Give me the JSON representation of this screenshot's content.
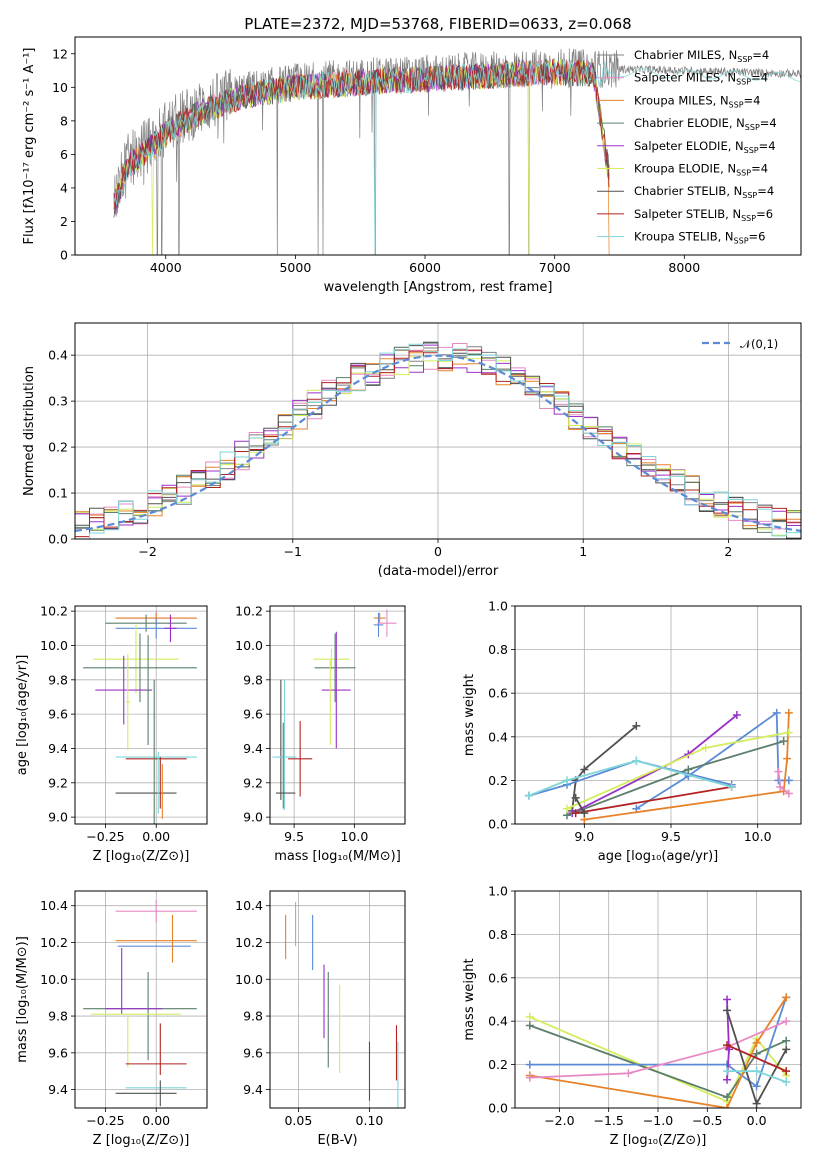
{
  "colors": [
    "#808080",
    "#e78ac3",
    "#e6822a",
    "#5b7f6b",
    "#9b30c9",
    "#d4ed5c",
    "#505050",
    "#b22222",
    "#7fd6d9"
  ],
  "chart_data": [
    {
      "id": "spectrum",
      "type": "line",
      "title": "PLATE=2372, MJD=53768, FIBERID=0633, z=0.068",
      "xlabel": "wavelength [Angstrom, rest frame]",
      "ylabel": "Flux [fλ10⁻¹⁷ erg cm⁻² s⁻¹ A⁻¹]",
      "xlim": [
        3300,
        8900
      ],
      "ylim": [
        0,
        13
      ],
      "xticks": [
        4000,
        5000,
        6000,
        7000,
        8000
      ],
      "yticks": [
        0,
        2,
        4,
        6,
        8,
        10,
        12
      ],
      "grid": false,
      "legend_position": "right",
      "data_range_x": [
        3600,
        8900
      ],
      "model_cutoff_x": [
        7420
      ],
      "continuum": [
        [
          3600,
          3.2
        ],
        [
          3700,
          5.5
        ],
        [
          3900,
          6.8
        ],
        [
          4000,
          7.6
        ],
        [
          4300,
          8.9
        ],
        [
          4600,
          9.8
        ],
        [
          5000,
          10.3
        ],
        [
          5500,
          10.6
        ],
        [
          6000,
          10.8
        ],
        [
          6500,
          11.0
        ],
        [
          7000,
          11.2
        ],
        [
          7400,
          11.1
        ],
        [
          8000,
          11.0
        ],
        [
          8900,
          10.8
        ]
      ],
      "absorption_lines_x": [
        3934,
        3969,
        4102,
        4861,
        5175,
        5212,
        5616,
        6650,
        6800
      ],
      "series": [
        {
          "name": "Chabrier MILES, N_SSP=4"
        },
        {
          "name": "Salpeter MILES, N_SSP=4"
        },
        {
          "name": "Kroupa MILES, N_SSP=4"
        },
        {
          "name": "Chabrier ELODIE, N_SSP=4"
        },
        {
          "name": "Salpeter ELODIE, N_SSP=4"
        },
        {
          "name": "Kroupa ELODIE, N_SSP=4"
        },
        {
          "name": "Chabrier STELIB, N_SSP=4"
        },
        {
          "name": "Salpeter STELIB, N_SSP=6"
        },
        {
          "name": "Kroupa STELIB, N_SSP=6"
        }
      ]
    },
    {
      "id": "residuals",
      "type": "line",
      "xlabel": "(data-model)/error",
      "ylabel": "Normed distribution",
      "xlim": [
        -2.5,
        2.5
      ],
      "ylim": [
        0,
        0.47
      ],
      "xticks": [
        -2,
        -1,
        0,
        1,
        2
      ],
      "yticks": [
        0.0,
        0.1,
        0.2,
        0.3,
        0.4
      ],
      "grid": true,
      "legend": [
        "𝒩(0,1)"
      ],
      "legend_position": "top-right",
      "reference_curve": {
        "mean": 0,
        "sigma": 1,
        "color": "#5b8bd6"
      },
      "bins": {
        "start": -2.5,
        "width": 0.1,
        "count": 50
      }
    },
    {
      "id": "age-vs-Z",
      "type": "scatter",
      "xlabel": "Z [log₁₀(Z/Z⊙)]",
      "ylabel": "age  [log₁₀(age/yr)]",
      "xlim": [
        -0.4,
        0.25
      ],
      "ylim": [
        8.96,
        10.23
      ],
      "xticks": [
        -0.25,
        0.0
      ],
      "yticks": [
        9.0,
        9.2,
        9.4,
        9.6,
        9.8,
        10.0,
        10.2
      ],
      "grid": true,
      "points": [
        {
          "c": "#e78ac3",
          "x": 0.0,
          "y": 10.16,
          "dx": 0.2,
          "dy": 0.04
        },
        {
          "c": "#e6822a",
          "x": 0.0,
          "y": 10.16,
          "dx": 0.2,
          "dy": 0.03
        },
        {
          "c": "#5b7f6b",
          "x": -0.05,
          "y": 10.13,
          "dx": 0.2,
          "dy": 0.05
        },
        {
          "c": "#5b8bd6",
          "x": 0.0,
          "y": 10.1,
          "dx": 0.2,
          "dy": 0.06
        },
        {
          "c": "#9b30c9",
          "x": 0.07,
          "y": 10.1,
          "dx": 0.03,
          "dy": 0.08
        },
        {
          "c": "#d4ed5c",
          "x": -0.1,
          "y": 9.92,
          "dx": 0.21,
          "dy": 0.2
        },
        {
          "c": "#5b7f6b",
          "x": -0.08,
          "y": 9.87,
          "dx": 0.28,
          "dy": 0.2
        },
        {
          "c": "#9b30c9",
          "x": -0.16,
          "y": 9.74,
          "dx": 0.14,
          "dy": 0.2
        },
        {
          "c": "#d4ed5c",
          "x": -0.14,
          "y": 9.67,
          "dx": 0.01,
          "dy": 0.28
        },
        {
          "c": "#5b7f6b",
          "x": -0.04,
          "y": 9.74,
          "dx": 0.01,
          "dy": 0.32
        },
        {
          "c": "#7fd6d9",
          "x": 0.0,
          "y": 9.35,
          "dx": 0.2,
          "dy": 0.01
        },
        {
          "c": "#b22222",
          "x": 0.0,
          "y": 9.34,
          "dx": 0.15,
          "dy": 0.0
        },
        {
          "c": "#505050",
          "x": -0.05,
          "y": 9.14,
          "dx": 0.15,
          "dy": 0.0
        },
        {
          "c": "#e6822a",
          "x": 0.03,
          "y": 9.15,
          "dx": 0.0,
          "dy": 0.16
        },
        {
          "c": "#b22222",
          "x": 0.02,
          "y": 9.2,
          "dx": 0.0,
          "dy": 0.15
        },
        {
          "c": "#5b7f6b",
          "x": -0.01,
          "y": 9.38,
          "dx": 0.0,
          "dy": 0.42
        },
        {
          "c": "#7fd6d9",
          "x": 0.01,
          "y": 9.2,
          "dx": 0.0,
          "dy": 0.18
        }
      ]
    },
    {
      "id": "age-vs-mass",
      "type": "scatter",
      "xlabel": "mass [log₁₀(M/M⊙)]",
      "ylabel": "",
      "xlim": [
        9.3,
        10.42
      ],
      "ylim": [
        8.96,
        10.23
      ],
      "xticks": [
        9.5,
        10.0
      ],
      "yticks": [
        9.0,
        9.2,
        9.4,
        9.6,
        9.8,
        10.0,
        10.2
      ],
      "grid": true,
      "points": [
        {
          "c": "#e6822a",
          "x": 10.21,
          "y": 10.16,
          "dx": 0.05,
          "dy": 0.03
        },
        {
          "c": "#5b8bd6",
          "x": 10.2,
          "y": 10.12,
          "dx": 0.04,
          "dy": 0.07
        },
        {
          "c": "#e78ac3",
          "x": 10.27,
          "y": 10.13,
          "dx": 0.08,
          "dy": 0.08
        },
        {
          "c": "#d4ed5c",
          "x": 9.81,
          "y": 9.92,
          "dx": 0.15,
          "dy": 0.06
        },
        {
          "c": "#5b7f6b",
          "x": 9.84,
          "y": 9.87,
          "dx": 0.17,
          "dy": 0.2
        },
        {
          "c": "#9b30c9",
          "x": 9.85,
          "y": 9.74,
          "dx": 0.12,
          "dy": 0.34
        },
        {
          "c": "#d4ed5c",
          "x": 9.8,
          "y": 9.67,
          "dx": 0.0,
          "dy": 0.25
        },
        {
          "c": "#505050",
          "x": 9.39,
          "y": 9.45,
          "dx": 0.0,
          "dy": 0.35
        },
        {
          "c": "#7fd6d9",
          "x": 9.42,
          "y": 9.42,
          "dx": 0.0,
          "dy": 0.38
        },
        {
          "c": "#7fd6d9",
          "x": 9.42,
          "y": 9.35,
          "dx": 0.1,
          "dy": 0.0
        },
        {
          "c": "#b22222",
          "x": 9.55,
          "y": 9.34,
          "dx": 0.1,
          "dy": 0.22
        },
        {
          "c": "#5b7f6b",
          "x": 9.41,
          "y": 9.3,
          "dx": 0.0,
          "dy": 0.25
        },
        {
          "c": "#505050",
          "x": 9.43,
          "y": 9.14,
          "dx": 0.08,
          "dy": 0.0
        }
      ]
    },
    {
      "id": "weight-vs-age",
      "type": "line",
      "xlabel": "age  [log₁₀(age/yr)]",
      "ylabel": "mass weight",
      "xlim": [
        8.6,
        10.25
      ],
      "ylim": [
        0,
        1
      ],
      "xticks": [
        9.0,
        9.5,
        10.0
      ],
      "yticks": [
        0.0,
        0.2,
        0.4,
        0.6,
        0.8,
        1.0
      ],
      "grid": true,
      "series": [
        {
          "c": "#505050",
          "pts": [
            [
              8.93,
              0.06
            ],
            [
              8.95,
              0.2
            ],
            [
              9.0,
              0.25
            ],
            [
              9.3,
              0.45
            ]
          ]
        },
        {
          "c": "#9b30c9",
          "pts": [
            [
              8.93,
              0.05
            ],
            [
              9.6,
              0.32
            ],
            [
              9.88,
              0.5
            ]
          ]
        },
        {
          "c": "#5b8bd6",
          "pts": [
            [
              8.68,
              0.13
            ],
            [
              8.9,
              0.18
            ],
            [
              9.3,
              0.29
            ],
            [
              9.85,
              0.18
            ]
          ]
        },
        {
          "c": "#5b8bd6",
          "pts": [
            [
              9.3,
              0.07
            ],
            [
              9.6,
              0.22
            ],
            [
              10.11,
              0.51
            ],
            [
              10.12,
              0.2
            ],
            [
              10.18,
              0.2
            ]
          ]
        },
        {
          "c": "#e6822a",
          "pts": [
            [
              9.0,
              0.02
            ],
            [
              10.15,
              0.15
            ],
            [
              10.17,
              0.3
            ],
            [
              10.18,
              0.51
            ]
          ]
        },
        {
          "c": "#5b7f6b",
          "pts": [
            [
              8.9,
              0.04
            ],
            [
              9.6,
              0.25
            ],
            [
              10.15,
              0.38
            ]
          ]
        },
        {
          "c": "#d4ed5c",
          "pts": [
            [
              8.9,
              0.07
            ],
            [
              9.7,
              0.35
            ],
            [
              10.18,
              0.42
            ]
          ]
        },
        {
          "c": "#b22222",
          "pts": [
            [
              8.95,
              0.05
            ],
            [
              9.85,
              0.17
            ]
          ]
        },
        {
          "c": "#e78ac3",
          "pts": [
            [
              10.12,
              0.24
            ],
            [
              10.13,
              0.17
            ],
            [
              10.18,
              0.14
            ]
          ]
        },
        {
          "c": "#7fd6d9",
          "pts": [
            [
              8.68,
              0.13
            ],
            [
              8.9,
              0.2
            ],
            [
              9.3,
              0.29
            ],
            [
              9.85,
              0.17
            ]
          ]
        },
        {
          "c": "#505050",
          "pts": [
            [
              8.95,
              0.12
            ],
            [
              9.0,
              0.05
            ]
          ]
        }
      ]
    },
    {
      "id": "mass-vs-Z",
      "type": "scatter",
      "xlabel": "Z [log₁₀(Z/Z⊙)]",
      "ylabel": "mass [log₁₀(M/M⊙)]",
      "xlim": [
        -0.4,
        0.25
      ],
      "ylim": [
        9.3,
        10.48
      ],
      "xticks": [
        -0.25,
        0.0
      ],
      "yticks": [
        9.4,
        9.6,
        9.8,
        10.0,
        10.2,
        10.4
      ],
      "grid": true,
      "points": [
        {
          "c": "#e78ac3",
          "x": 0.0,
          "y": 10.37,
          "dx": 0.2,
          "dy": 0.06
        },
        {
          "c": "#e6822a",
          "x": 0.0,
          "y": 10.21,
          "dx": 0.2,
          "dy": 0.0
        },
        {
          "c": "#5b8bd6",
          "x": -0.01,
          "y": 10.18,
          "dx": 0.18,
          "dy": 0.0
        },
        {
          "c": "#e6822a",
          "x": 0.08,
          "y": 10.22,
          "dx": 0.0,
          "dy": 0.13
        },
        {
          "c": "#9b30c9",
          "x": -0.17,
          "y": 9.99,
          "dx": 0.0,
          "dy": 0.18
        },
        {
          "c": "#5b7f6b",
          "x": -0.04,
          "y": 9.8,
          "dx": 0.0,
          "dy": 0.24
        },
        {
          "c": "#5b7f6b",
          "x": -0.08,
          "y": 9.84,
          "dx": 0.28,
          "dy": 0.0
        },
        {
          "c": "#9b30c9",
          "x": -0.11,
          "y": 9.84,
          "dx": 0.14,
          "dy": 0.0
        },
        {
          "c": "#d4ed5c",
          "x": -0.1,
          "y": 9.81,
          "dx": 0.22,
          "dy": 0.0
        },
        {
          "c": "#d4ed5c",
          "x": -0.14,
          "y": 9.66,
          "dx": 0.0,
          "dy": 0.14
        },
        {
          "c": "#b22222",
          "x": 0.02,
          "y": 9.62,
          "dx": 0.0,
          "dy": 0.14
        },
        {
          "c": "#b22222",
          "x": 0.0,
          "y": 9.54,
          "dx": 0.15,
          "dy": 0.0
        },
        {
          "c": "#7fd6d9",
          "x": 0.0,
          "y": 9.41,
          "dx": 0.15,
          "dy": 0.0
        },
        {
          "c": "#505050",
          "x": -0.05,
          "y": 9.38,
          "dx": 0.15,
          "dy": 0.0
        },
        {
          "c": "#505050",
          "x": 0.02,
          "y": 9.38,
          "dx": 0.0,
          "dy": 0.07
        }
      ]
    },
    {
      "id": "mass-vs-ebv",
      "type": "scatter",
      "xlabel": "E(B-V)",
      "ylabel": "",
      "xlim": [
        0.03,
        0.125
      ],
      "ylim": [
        9.3,
        10.48
      ],
      "xticks": [
        0.05,
        0.1
      ],
      "yticks": [
        9.4,
        9.6,
        9.8,
        10.0,
        10.2,
        10.4
      ],
      "grid": true,
      "points": [
        {
          "c": "#e6822a",
          "x": 0.041,
          "y": 10.23,
          "dx": 0.0,
          "dy": 0.12
        },
        {
          "c": "#e78ac3",
          "x": 0.048,
          "y": 10.3,
          "dx": 0.0,
          "dy": 0.12
        },
        {
          "c": "#5b8bd6",
          "x": 0.06,
          "y": 10.2,
          "dx": 0.0,
          "dy": 0.15
        },
        {
          "c": "#9b30c9",
          "x": 0.068,
          "y": 9.88,
          "dx": 0.0,
          "dy": 0.2
        },
        {
          "c": "#5b7f6b",
          "x": 0.071,
          "y": 9.78,
          "dx": 0.0,
          "dy": 0.26
        },
        {
          "c": "#d4ed5c",
          "x": 0.079,
          "y": 9.73,
          "dx": 0.0,
          "dy": 0.24
        },
        {
          "c": "#505050",
          "x": 0.1,
          "y": 9.5,
          "dx": 0.0,
          "dy": 0.16
        },
        {
          "c": "#b22222",
          "x": 0.119,
          "y": 9.6,
          "dx": 0.0,
          "dy": 0.15
        },
        {
          "c": "#7fd6d9",
          "x": 0.12,
          "y": 9.48,
          "dx": 0.0,
          "dy": 0.18
        }
      ]
    },
    {
      "id": "weight-vs-Z",
      "type": "line",
      "xlabel": "Z [log₁₀(Z/Z⊙)]",
      "ylabel": "mass weight",
      "xlim": [
        -2.45,
        0.45
      ],
      "ylim": [
        0,
        1
      ],
      "xticks": [
        -2.0,
        -1.5,
        -1.0,
        -0.5,
        0.0
      ],
      "yticks": [
        0.0,
        0.2,
        0.4,
        0.6,
        0.8,
        1.0
      ],
      "grid": true,
      "series": [
        {
          "c": "#d4ed5c",
          "pts": [
            [
              -2.3,
              0.42
            ],
            [
              -0.3,
              0.03
            ],
            [
              0.0,
              0.32
            ],
            [
              0.3,
              0.15
            ]
          ]
        },
        {
          "c": "#5b7f6b",
          "pts": [
            [
              -2.3,
              0.38
            ],
            [
              -0.3,
              0.05
            ],
            [
              0.0,
              0.25
            ],
            [
              0.3,
              0.31
            ]
          ]
        },
        {
          "c": "#5b8bd6",
          "pts": [
            [
              -2.3,
              0.2
            ],
            [
              -0.3,
              0.2
            ],
            [
              0.0,
              0.1
            ],
            [
              0.3,
              0.51
            ]
          ]
        },
        {
          "c": "#e6822a",
          "pts": [
            [
              -2.3,
              0.15
            ],
            [
              -0.3,
              0.0
            ],
            [
              0.0,
              0.3
            ],
            [
              0.3,
              0.51
            ]
          ]
        },
        {
          "c": "#e78ac3",
          "pts": [
            [
              -2.3,
              0.14
            ],
            [
              -1.3,
              0.16
            ],
            [
              -0.3,
              0.28
            ],
            [
              0.3,
              0.4
            ]
          ]
        },
        {
          "c": "#9b30c9",
          "pts": [
            [
              -0.3,
              0.5
            ],
            [
              -0.28,
              0.27
            ],
            [
              -0.3,
              0.13
            ]
          ]
        },
        {
          "c": "#505050",
          "pts": [
            [
              -0.3,
              0.45
            ],
            [
              0.0,
              0.02
            ],
            [
              0.3,
              0.27
            ]
          ]
        },
        {
          "c": "#7fd6d9",
          "pts": [
            [
              -0.3,
              0.17
            ],
            [
              0.0,
              0.17
            ],
            [
              0.3,
              0.12
            ]
          ]
        },
        {
          "c": "#b22222",
          "pts": [
            [
              -0.3,
              0.29
            ],
            [
              0.3,
              0.17
            ]
          ]
        }
      ]
    }
  ]
}
